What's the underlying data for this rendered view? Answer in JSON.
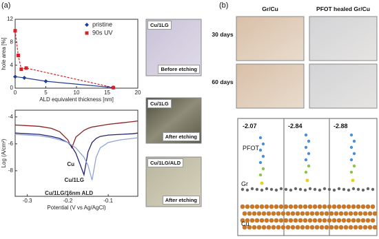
{
  "panel_labels": [
    "(a)",
    "(b)"
  ],
  "chart_data": [
    {
      "type": "scatter",
      "xlabel": "ALD equivalent thickness [nm]",
      "ylabel": "hole area [%]",
      "xlim": [
        0,
        20
      ],
      "xticks": [
        0,
        5,
        10,
        15,
        20
      ],
      "ylim": [
        0,
        12
      ],
      "yticks": [
        0,
        4,
        8,
        12
      ],
      "legend": "upper right",
      "series": [
        {
          "name": "pristine",
          "color": "#1f3d99",
          "marker": "diamond",
          "dashed": false,
          "x": [
            0,
            1.5,
            5,
            16
          ],
          "values": [
            2.0,
            1.8,
            1.2,
            0.1
          ]
        },
        {
          "name": "90s UV",
          "color": "#d6202a",
          "marker": "square",
          "dashed": true,
          "x": [
            0,
            0.5,
            1,
            1.8,
            16
          ],
          "values": [
            10,
            5.7,
            3.3,
            3.5,
            0.1
          ]
        }
      ]
    },
    {
      "type": "line",
      "xlabel": "Potential (V vs Ag/AgCl)",
      "ylabel": "Log (A/cm²)",
      "xlim": [
        -0.33,
        -0.027
      ],
      "xticks": [
        -0.3,
        -0.2,
        -0.1
      ],
      "ylim": [
        -9.9,
        -3.5
      ],
      "yticks": [
        -4,
        -6,
        -8
      ],
      "x": [
        -0.33,
        -0.3,
        -0.27,
        -0.24,
        -0.22,
        -0.2,
        -0.19,
        -0.18,
        -0.16,
        -0.15,
        -0.14,
        -0.13,
        -0.12,
        -0.1,
        -0.07,
        -0.04,
        -0.027
      ],
      "series": [
        {
          "name": "Cu",
          "color": "#8b1f1f",
          "values": [
            -4.6,
            -4.65,
            -4.7,
            -4.85,
            -5.1,
            -5.7,
            -6.3,
            -5.5,
            -5.0,
            -4.85,
            -4.75,
            -4.7,
            -4.65,
            -4.55,
            -4.45,
            -4.35,
            -4.3
          ]
        },
        {
          "name": "Cu/1LG",
          "color": "#23236e",
          "values": [
            -5.2,
            -5.25,
            -5.3,
            -5.45,
            -5.6,
            -5.9,
            -6.2,
            -6.7,
            -8.3,
            -6.6,
            -5.9,
            -5.6,
            -5.45,
            -5.35,
            -5.3,
            -5.25,
            -5.2
          ]
        },
        {
          "name": "Cu/1LG/16nm ALD",
          "color": "#8fa3d6",
          "values": [
            -5.3,
            -5.35,
            -5.4,
            -5.55,
            -5.7,
            -5.9,
            -6.1,
            -6.3,
            -7.0,
            -7.6,
            -8.7,
            -7.0,
            -6.3,
            -5.9,
            -5.7,
            -5.6,
            -5.55
          ]
        }
      ]
    }
  ],
  "micrographs": [
    {
      "label": "Cu/1LG",
      "caption": "Before etching"
    },
    {
      "label": "Cu/1LG",
      "caption": "After etching"
    },
    {
      "label": "Cu/1LG/ALD",
      "caption": "After etching"
    }
  ],
  "panel_b": {
    "columns": [
      "Gr/Cu",
      "PFOT healed Gr/Cu"
    ],
    "rows": [
      "30 days",
      "60 days"
    ],
    "energies": [
      -2.07,
      -2.84,
      -2.88
    ],
    "labels": [
      "PFOT",
      "Gr",
      "Cu"
    ]
  }
}
